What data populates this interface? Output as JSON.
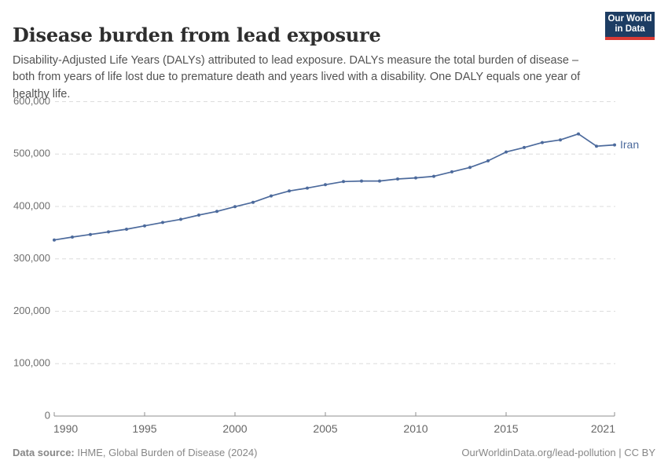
{
  "header": {
    "title": "Disease burden from lead exposure",
    "subtitle": "Disability-Adjusted Life Years (DALYs) attributed to lead exposure. DALYs measure the total burden of disease – both from years of life lost due to premature death and years lived with a disability. One DALY equals one year of healthy life.",
    "logo": {
      "line1": "Our World",
      "line2": "in Data",
      "bg": "#1d3d63",
      "accent": "#d93a34"
    }
  },
  "chart_data": {
    "type": "line",
    "title": "Disease burden from lead exposure",
    "xlabel": "",
    "ylabel": "",
    "xlim": [
      1990,
      2021
    ],
    "ylim": [
      0,
      600000
    ],
    "x_ticks": [
      1990,
      1995,
      2000,
      2005,
      2010,
      2015,
      2021
    ],
    "y_ticks": [
      0,
      100000,
      200000,
      300000,
      400000,
      500000,
      600000
    ],
    "grid": "horizontal-dashed",
    "legend_position": "end-of-line-label",
    "series": [
      {
        "name": "Iran",
        "color": "#4c6a9c",
        "x": [
          1990,
          1991,
          1992,
          1993,
          1994,
          1995,
          1996,
          1997,
          1998,
          1999,
          2000,
          2001,
          2002,
          2003,
          2004,
          2005,
          2006,
          2007,
          2008,
          2009,
          2010,
          2011,
          2012,
          2013,
          2014,
          2015,
          2016,
          2017,
          2018,
          2019,
          2020,
          2021
        ],
        "values": [
          336000,
          341500,
          346500,
          351500,
          356500,
          363000,
          369500,
          375500,
          383500,
          390500,
          399500,
          408000,
          420000,
          429500,
          435000,
          441500,
          447500,
          448500,
          448500,
          452500,
          454500,
          457500,
          466000,
          474500,
          487000,
          504000,
          512500,
          522000,
          527000,
          538500,
          515000,
          517500
        ]
      }
    ],
    "colors": {
      "grid": "#dcdcdc",
      "axis": "#8f8f8f",
      "tick_label": "#6e6e6e"
    }
  },
  "footer": {
    "source_label": "Data source:",
    "source_text": " IHME, Global Burden of Disease (2024)",
    "link_text": "OurWorldinData.org/lead-pollution | CC BY"
  }
}
